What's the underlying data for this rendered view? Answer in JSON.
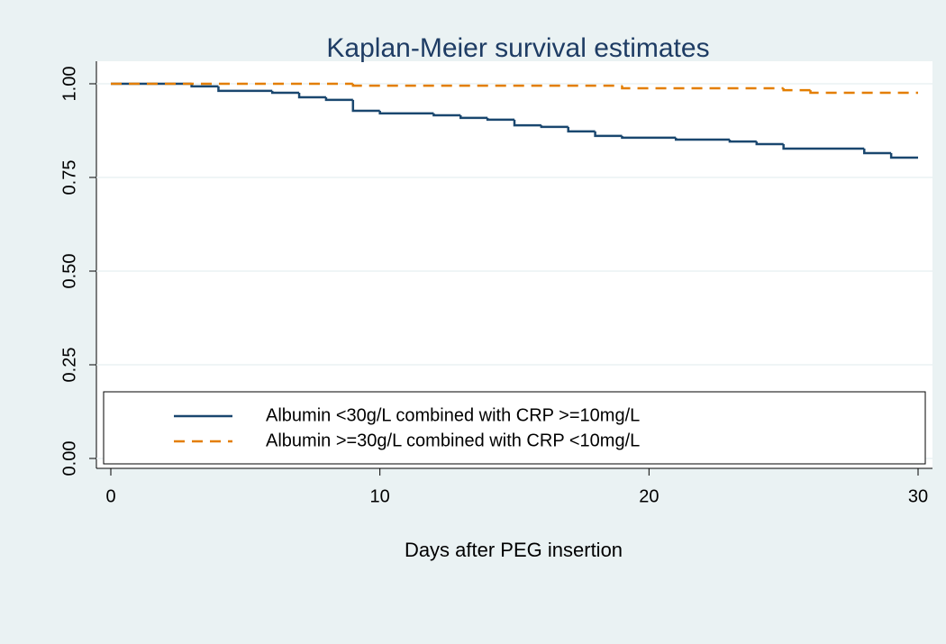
{
  "chart_data": {
    "type": "line",
    "step": "post",
    "title": "Kaplan-Meier survival estimates",
    "x_label": "Days after PEG insertion",
    "series": [
      {
        "name": "Albumin <30g/L combined with CRP >=10mg/L",
        "color": "#1a476f",
        "dash": false,
        "x": [
          0,
          3,
          4,
          6,
          7,
          8,
          9,
          10,
          12,
          13,
          14,
          15,
          16,
          17,
          18,
          19,
          21,
          23,
          24,
          25,
          28,
          29,
          30
        ],
        "values": [
          1.0,
          0.993,
          0.981,
          0.976,
          0.964,
          0.957,
          0.928,
          0.921,
          0.916,
          0.909,
          0.904,
          0.889,
          0.885,
          0.873,
          0.861,
          0.856,
          0.851,
          0.846,
          0.839,
          0.827,
          0.815,
          0.803,
          0.803
        ]
      },
      {
        "name": "Albumin >=30g/L combined with CRP <10mg/L",
        "color": "#e37e00",
        "dash": true,
        "x": [
          0,
          9,
          19,
          25,
          26,
          30
        ],
        "values": [
          1.0,
          0.995,
          0.988,
          0.983,
          0.976,
          0.976
        ]
      }
    ],
    "xlim": [
      0,
      30
    ],
    "xticks": [
      0,
      10,
      20,
      30
    ],
    "ylim": [
      0,
      1
    ],
    "yticks": [
      {
        "value": 0,
        "label": "0.00"
      },
      {
        "value": 0.25,
        "label": "0.25"
      },
      {
        "value": 0.5,
        "label": "0.50"
      },
      {
        "value": 0.75,
        "label": "0.75"
      },
      {
        "value": 1,
        "label": "1.00"
      }
    ],
    "grid": true,
    "legend": "bottom"
  }
}
